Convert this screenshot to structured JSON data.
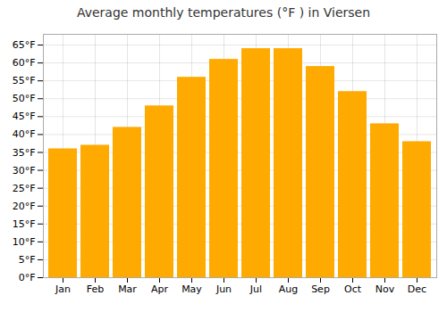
{
  "chart_data": {
    "type": "bar",
    "title": "Average monthly temperatures (°F ) in Viersen",
    "categories": [
      "Jan",
      "Feb",
      "Mar",
      "Apr",
      "May",
      "Jun",
      "Jul",
      "Aug",
      "Sep",
      "Oct",
      "Nov",
      "Dec"
    ],
    "values": [
      36,
      37,
      42,
      48,
      56,
      61,
      64,
      64,
      59,
      52,
      43,
      38
    ],
    "color": "#FFAA00",
    "ylim": [
      0,
      68
    ],
    "yticks": [
      {
        "value": 0,
        "label": "0°F"
      },
      {
        "value": 5,
        "label": "5°F"
      },
      {
        "value": 10,
        "label": "10°F"
      },
      {
        "value": 15,
        "label": "15°F"
      },
      {
        "value": 20,
        "label": "20°F"
      },
      {
        "value": 25,
        "label": "25°F"
      },
      {
        "value": 30,
        "label": "30°F"
      },
      {
        "value": 35,
        "label": "35°F"
      },
      {
        "value": 40,
        "label": "40°F"
      },
      {
        "value": 45,
        "label": "45°F"
      },
      {
        "value": 50,
        "label": "50°F"
      },
      {
        "value": 55,
        "label": "55°F"
      },
      {
        "value": 60,
        "label": "60°F"
      },
      {
        "value": 65,
        "label": "65°F"
      }
    ],
    "grid": true
  }
}
